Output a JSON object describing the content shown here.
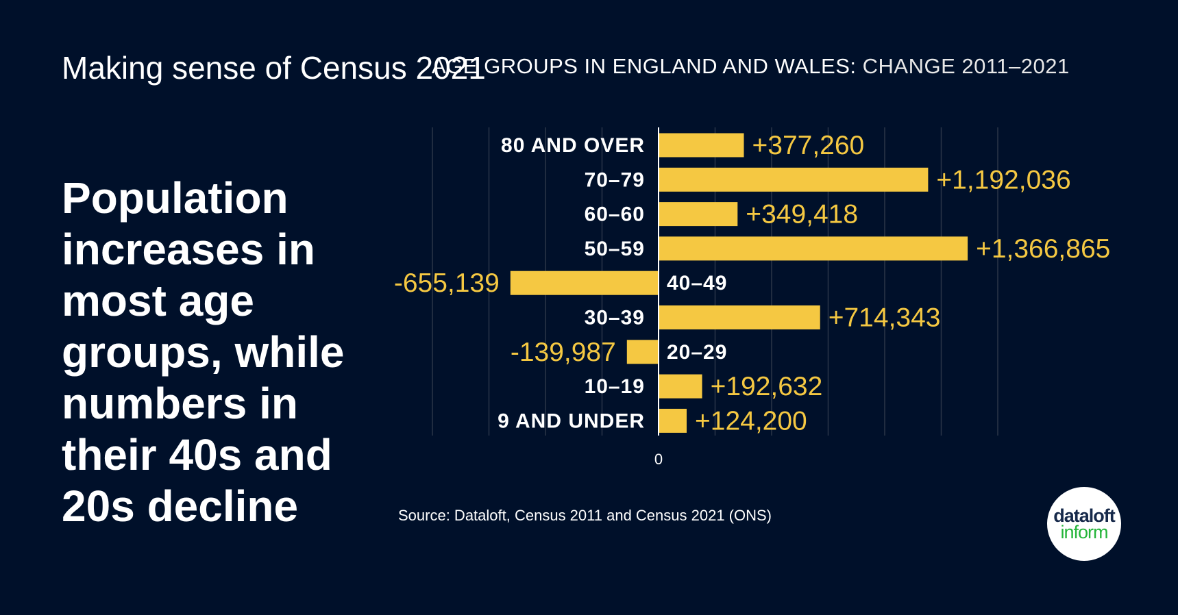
{
  "kicker": "Making sense of Census 2021",
  "headline": "Population increases in most age groups, while numbers in their 40s and 20s decline",
  "source": "Source: Dataloft, Census 2011 and Census 2021 (ONS)",
  "logo": {
    "line1": "dataloft",
    "line2": "inform"
  },
  "colors": {
    "background": "#00102a",
    "bar": "#f5c842",
    "text": "#ffffff",
    "grid": "#2a3548"
  },
  "chart_data": {
    "type": "bar",
    "orientation": "horizontal",
    "title_bold": "AGE GROUPS IN ENGLAND AND WALES:",
    "title_light": " CHANGE 2011–2021",
    "categories": [
      "80 AND OVER",
      "70–79",
      "60–60",
      "50–59",
      "40–49",
      "30–39",
      "20–29",
      "10–19",
      "9 AND UNDER"
    ],
    "values": [
      377260,
      1192036,
      349418,
      1366865,
      -655139,
      714343,
      -139987,
      192632,
      124200
    ],
    "data_labels": [
      "+377,260",
      "+1,192,036",
      "+349,418",
      "+1,366,865",
      "-655,139",
      "+714,343",
      "-139,987",
      "+192,632",
      "+124,200"
    ],
    "x_tick_labels": [
      "0"
    ],
    "xlim": [
      -1000000,
      1500000
    ],
    "grid": true,
    "grid_step": 250000
  }
}
